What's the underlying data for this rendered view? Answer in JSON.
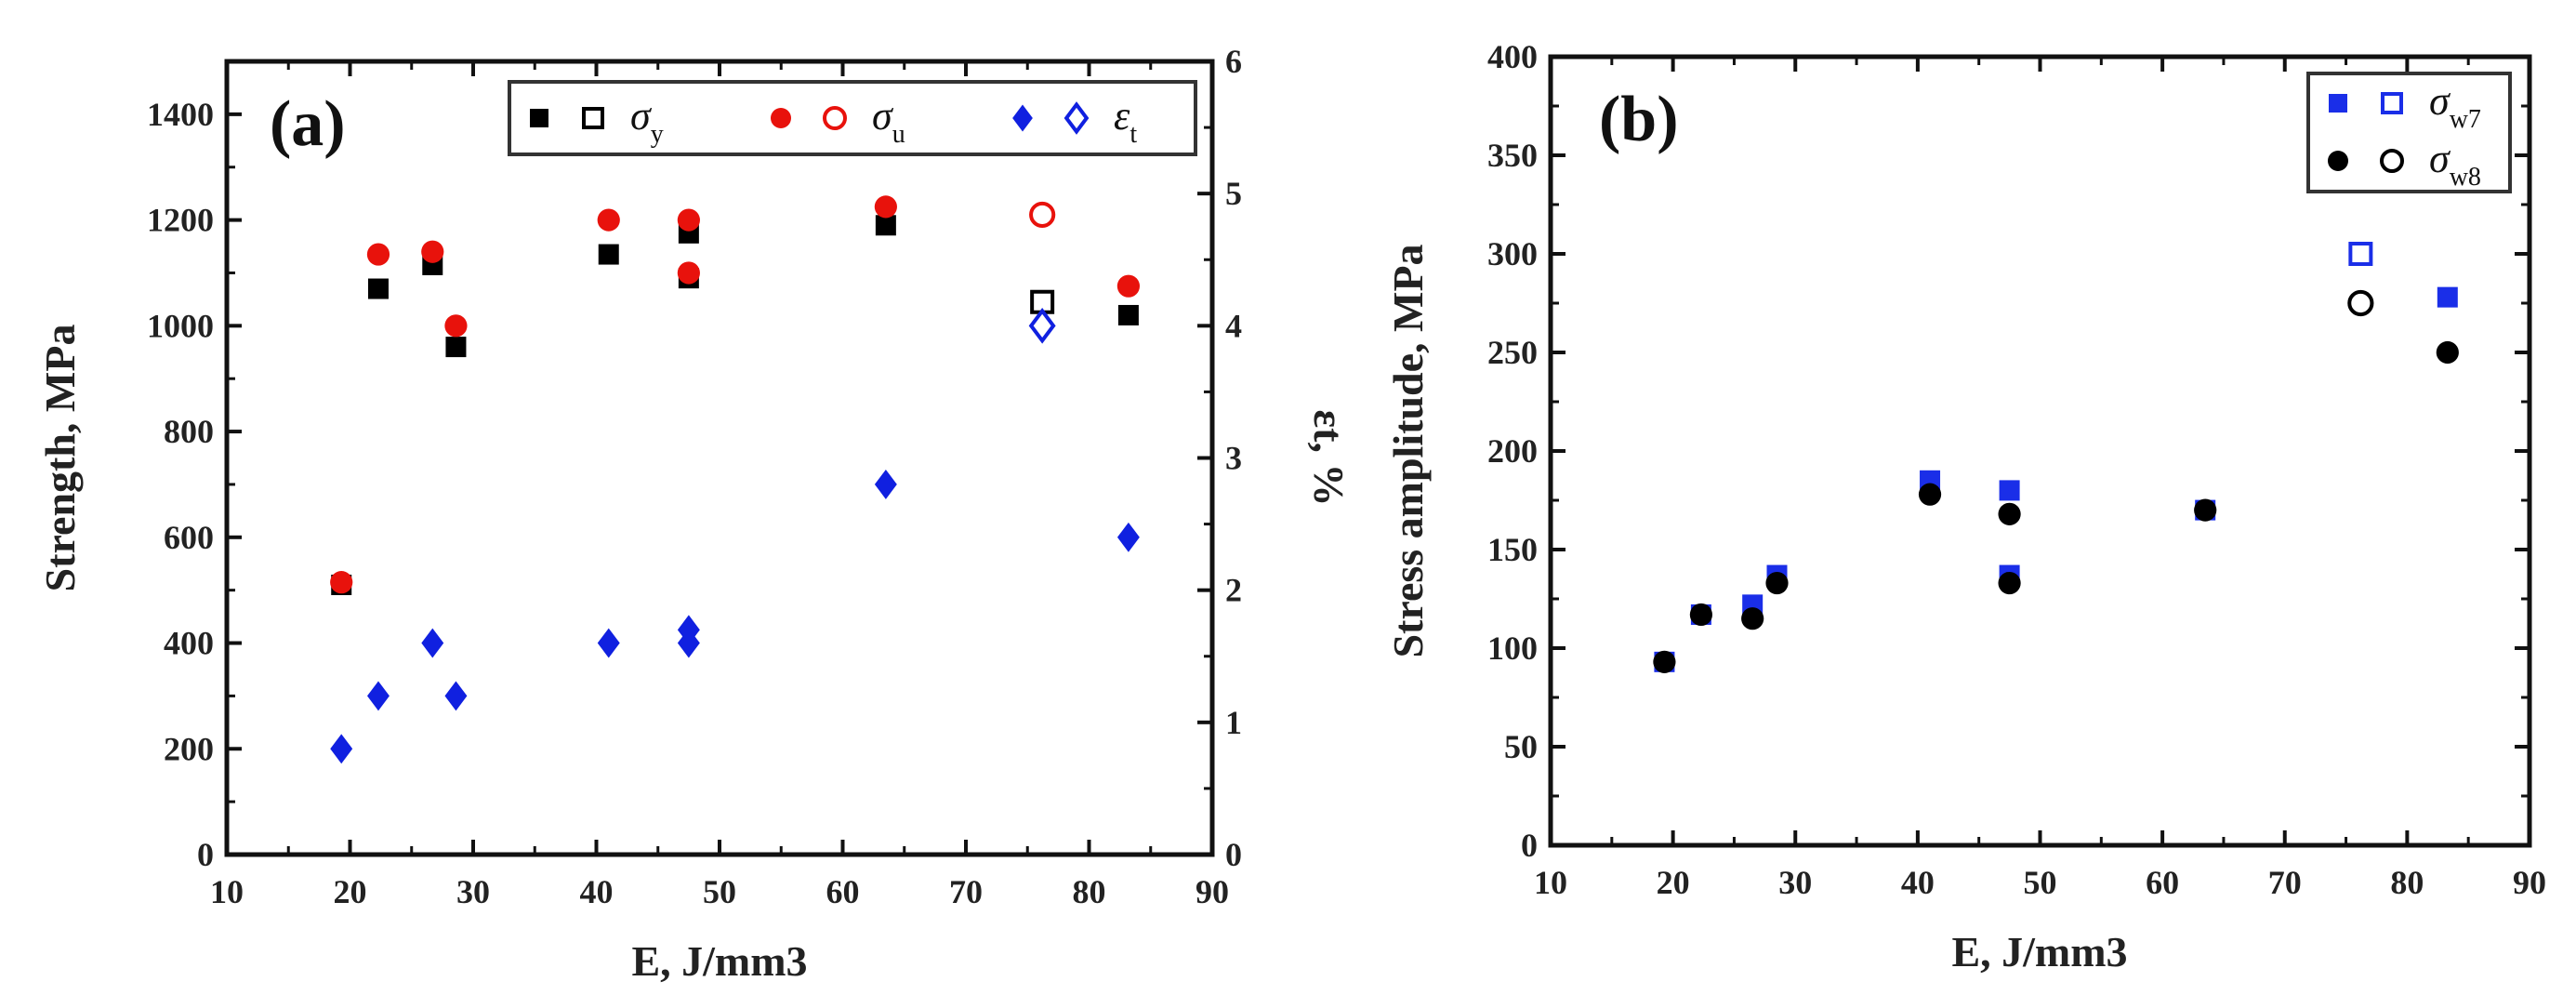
{
  "chart_data": [
    {
      "type": "scatter",
      "panel_label": "(a)",
      "xlabel": "E, J/mm3",
      "xlabel_parts": {
        "var": "E",
        "unit": "J/mm",
        "sup": "3"
      },
      "ylabel": "Strength,  MPa",
      "y2label": "εt, %",
      "xlim": [
        10,
        90
      ],
      "ylim": [
        0,
        1500
      ],
      "y2lim": [
        0,
        6
      ],
      "xticks": [
        10,
        20,
        30,
        40,
        50,
        60,
        70,
        80,
        90
      ],
      "yticks": [
        0,
        200,
        400,
        600,
        800,
        1000,
        1200,
        1400
      ],
      "y2ticks": [
        0,
        1,
        2,
        3,
        4,
        5,
        6
      ],
      "legend_position": "top-right",
      "series": [
        {
          "name": "σy",
          "sub": "y",
          "marker": "square",
          "color": "#000000",
          "axis": "left",
          "x": [
            19.3,
            22.3,
            26.7,
            28.6,
            41.0,
            47.5,
            47.5,
            63.5,
            76.2,
            83.2
          ],
          "y": [
            510,
            1070,
            1115,
            960,
            1135,
            1175,
            1090,
            1190,
            1045,
            1020
          ],
          "open": [
            false,
            false,
            false,
            false,
            false,
            false,
            false,
            false,
            true,
            false
          ]
        },
        {
          "name": "σu",
          "sub": "u",
          "marker": "circle",
          "color": "#e8120c",
          "axis": "left",
          "x": [
            19.3,
            22.3,
            26.7,
            28.6,
            41.0,
            47.5,
            47.5,
            63.5,
            76.2,
            83.2
          ],
          "y": [
            515,
            1135,
            1140,
            1000,
            1200,
            1200,
            1100,
            1225,
            1210,
            1075
          ],
          "open": [
            false,
            false,
            false,
            false,
            false,
            false,
            false,
            false,
            true,
            false
          ]
        },
        {
          "name": "εt",
          "sub": "t",
          "marker": "diamond",
          "color": "#1020e0",
          "axis": "right",
          "x": [
            19.3,
            22.3,
            26.7,
            28.6,
            41.0,
            47.5,
            47.5,
            63.5,
            76.2,
            83.2
          ],
          "y": [
            0.8,
            1.2,
            1.6,
            1.2,
            1.6,
            1.6,
            1.7,
            2.8,
            4.0,
            2.4
          ],
          "open": [
            false,
            false,
            false,
            false,
            false,
            false,
            false,
            false,
            true,
            false
          ]
        }
      ]
    },
    {
      "type": "scatter",
      "panel_label": "(b)",
      "xlabel": "E, J/mm3",
      "xlabel_parts": {
        "var": "E",
        "unit": "J/mm",
        "sup": "3"
      },
      "ylabel": "Stress amplitude,  MPa",
      "xlim": [
        10,
        90
      ],
      "ylim": [
        0,
        400
      ],
      "xticks": [
        10,
        20,
        30,
        40,
        50,
        60,
        70,
        80,
        90
      ],
      "yticks": [
        0,
        50,
        100,
        150,
        200,
        250,
        300,
        350,
        400
      ],
      "legend_position": "top-right",
      "series": [
        {
          "name": "σw7",
          "sub": "w7",
          "marker": "square",
          "color": "#1a2ee8",
          "x": [
            19.3,
            22.3,
            26.5,
            28.5,
            41.0,
            47.5,
            47.5,
            63.5,
            76.2,
            83.3
          ],
          "y": [
            93,
            117,
            122,
            137,
            185,
            180,
            137,
            170,
            300,
            278
          ],
          "open": [
            false,
            false,
            false,
            false,
            false,
            false,
            false,
            false,
            true,
            false
          ]
        },
        {
          "name": "σw8",
          "sub": "w8",
          "marker": "circle",
          "color": "#000000",
          "x": [
            19.3,
            22.3,
            26.5,
            28.5,
            41.0,
            47.5,
            47.5,
            63.5,
            76.2,
            83.3
          ],
          "y": [
            93,
            117,
            115,
            133,
            178,
            168,
            133,
            170,
            275,
            250
          ],
          "open": [
            false,
            false,
            false,
            false,
            false,
            false,
            false,
            false,
            true,
            false
          ]
        }
      ]
    }
  ]
}
